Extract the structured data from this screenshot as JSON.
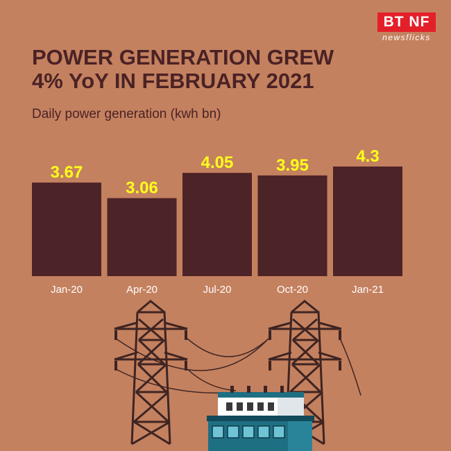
{
  "logo": {
    "main": "BT NF",
    "sub": "newsflicks"
  },
  "title": {
    "line1": "POWER GENERATION GREW",
    "line2": "4% YoY IN FEBRUARY 2021"
  },
  "chart_data": {
    "type": "bar",
    "title": "POWER GENERATION GREW 4% YoY IN FEBRUARY 2021",
    "ylabel": "Daily power generation (kwh bn)",
    "xlabel": "",
    "categories": [
      "Jan-20",
      "Apr-20",
      "Jul-20",
      "Oct-20",
      "Jan-21"
    ],
    "values": [
      3.67,
      3.06,
      4.05,
      3.95,
      4.3
    ],
    "value_labels": [
      "3.67",
      "3.06",
      "4.05",
      "3.95",
      "4.3"
    ],
    "ylim": [
      0,
      4.3
    ],
    "grid": false,
    "legend": "none",
    "colors": {
      "bar": "#4c2327",
      "value_label": "#ffff1a",
      "tick_label": "#ffffff",
      "background": "#c4815f"
    }
  },
  "illustration": {
    "name": "power-station-illustration"
  }
}
